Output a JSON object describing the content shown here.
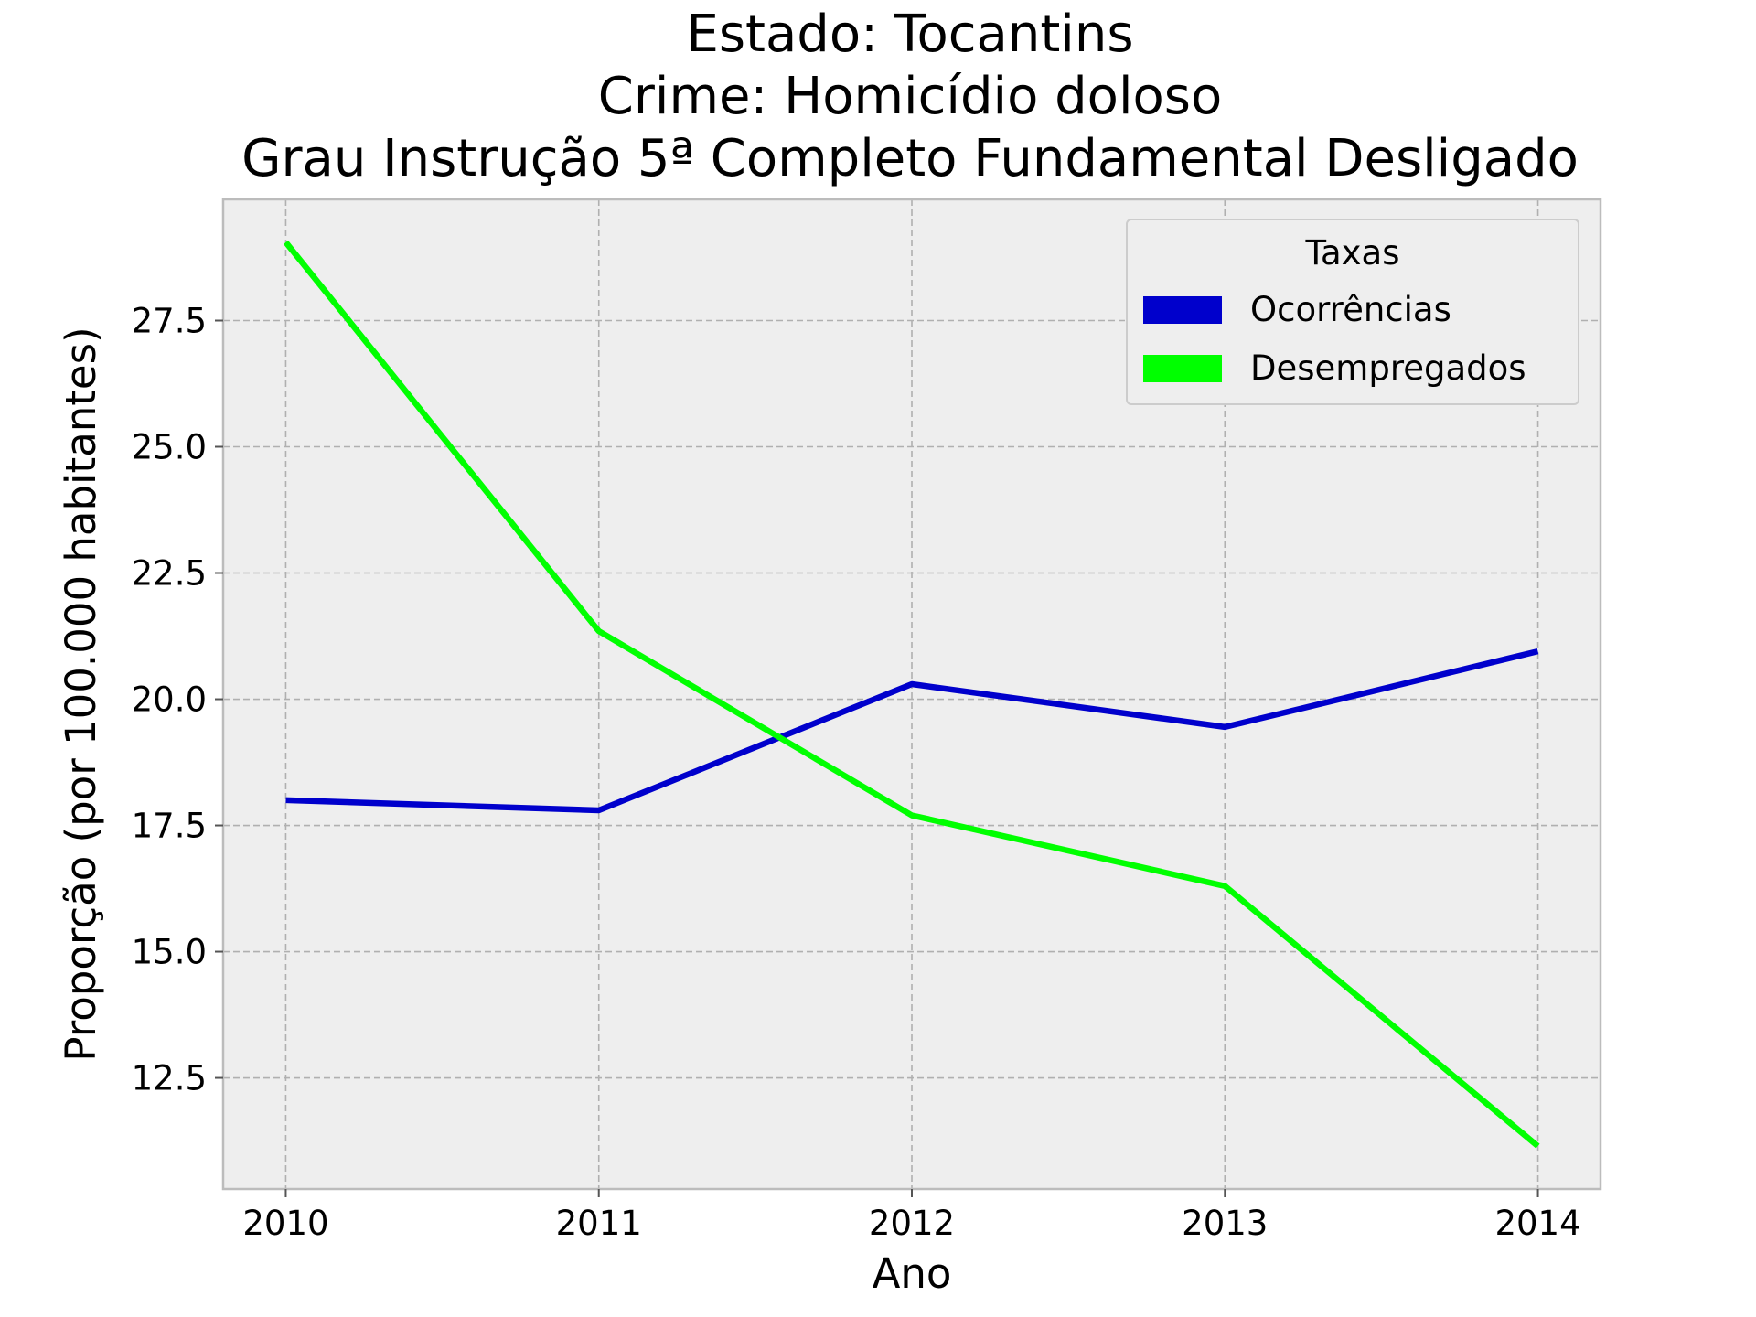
{
  "chart_data": {
    "type": "line",
    "title": [
      "Estado: Tocantins",
      "Crime: Homicídio doloso",
      "Grau Instrução  5ª Completo Fundamental   Desligado"
    ],
    "xlabel": "Ano",
    "ylabel": "Proporção (por 100.000 habitantes)",
    "x": [
      2010,
      2011,
      2012,
      2013,
      2014
    ],
    "xticks": [
      "2010",
      "2011",
      "2012",
      "2013",
      "2014"
    ],
    "yticks": [
      "12.5",
      "15.0",
      "17.5",
      "20.0",
      "22.5",
      "25.0",
      "27.5"
    ],
    "ytick_values": [
      12.5,
      15.0,
      17.5,
      20.0,
      22.5,
      25.0,
      27.5
    ],
    "xlim": [
      2009.8,
      2014.2
    ],
    "ylim": [
      10.3,
      29.9
    ],
    "grid": true,
    "legend": {
      "title": "Taxas",
      "placement": "top-right"
    },
    "series": [
      {
        "name": "Ocorrências",
        "color": "#0000cc",
        "values": [
          18.0,
          17.8,
          20.3,
          19.45,
          20.95
        ]
      },
      {
        "name": "Desempregados",
        "color": "#00ff00",
        "values": [
          29.05,
          21.35,
          17.7,
          16.3,
          11.15
        ]
      }
    ]
  }
}
